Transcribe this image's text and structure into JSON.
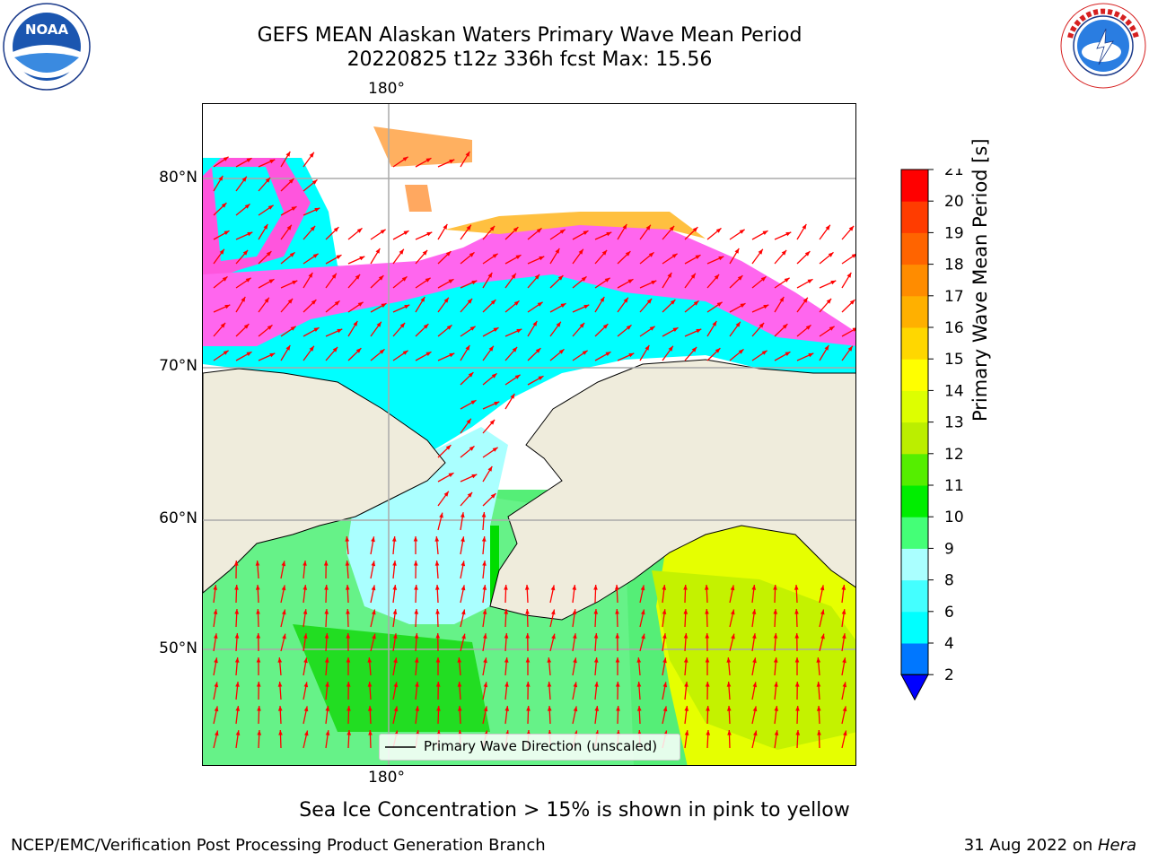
{
  "header": {
    "title_line1": "GEFS MEAN Alaskan Waters Primary Wave Mean Period",
    "title_line2": "20220825 t12z 336h fcst   Max: 15.56"
  },
  "logos": {
    "left": "NOAA",
    "left_ring_text": "NATIONAL OCEANIC AND ATMOSPHERIC ADMINISTRATION · U.S. DEPARTMENT OF COMMERCE",
    "right_ring_text": "NATIONAL WEATHER SERVICE"
  },
  "map": {
    "longitude_label_top": "180°",
    "longitude_label_bottom": "180°",
    "latitude_labels": [
      "80°N",
      "70°N",
      "60°N",
      "50°N"
    ],
    "legend_label": "Primary Wave Direction (unscaled)",
    "land_color": "#efecdc",
    "arrow_color": "#ff0000"
  },
  "colorbar": {
    "title": "Primary Wave Mean Period [s]",
    "ticks": [
      "2",
      "4",
      "6",
      "8",
      "9",
      "10",
      "11",
      "12",
      "13",
      "14",
      "15",
      "16",
      "17",
      "18",
      "19",
      "20",
      "21"
    ],
    "colors": [
      "#0077ff",
      "#00ffff",
      "#44ffff",
      "#aaffff",
      "#44ff77",
      "#00ee00",
      "#55ee00",
      "#bbee00",
      "#ddff00",
      "#ffff00",
      "#ffd700",
      "#ffb000",
      "#ff8c00",
      "#ff6400",
      "#ff3c00",
      "#ff0000"
    ],
    "extend_color": "#0000ff"
  },
  "notes": {
    "ice": "Sea Ice Concentration > 15% is shown in pink to yellow",
    "footer_left": "NCEP/EMC/Verification Post Processing Product Generation Branch",
    "footer_right_date": "31 Aug 2022 on ",
    "footer_right_machine": "Hera"
  }
}
